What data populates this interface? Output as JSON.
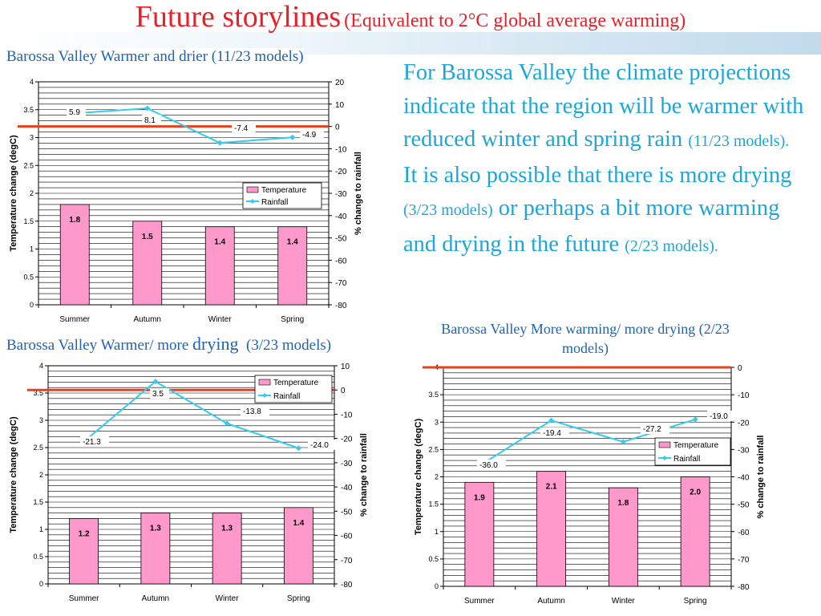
{
  "slide": {
    "title_main": "Future storylines",
    "title_sub": "(Equivalent to 2°C global average warming)",
    "captions": {
      "chart1": "Barossa Valley Warmer and drier (11/23 models)",
      "chart2_a": "Barossa Valley Warmer/ more",
      "chart2_b": "drying",
      "chart2_c": "(3/23 models)",
      "chart3": "Barossa Valley More warming/ more drying (2/23 models)"
    },
    "body": {
      "p1": "For Barossa Valley the climate projections indicate that the region will be warmer with reduced winter and spring rain",
      "p1_models": "(11/23 models).",
      "p2": "It is also possible that there is more drying",
      "p2_models": "(3/23 models)",
      "p3": "or perhaps a bit more warming and drying in the future",
      "p3_models": "(2/23 models)."
    },
    "colors": {
      "title": "#e8202a",
      "caption": "#1f63b4",
      "body": "#1ca6d9",
      "bar_fill": "#ff99cc",
      "rainfall_line": "#33ccee",
      "zero_line": "#e8401c"
    }
  },
  "chart_data": [
    {
      "type": "bar",
      "categories": [
        "Summer",
        "Autumn",
        "Winter",
        "Spring"
      ],
      "series": [
        {
          "name": "Temperature",
          "values": [
            1.8,
            1.5,
            1.4,
            1.4
          ],
          "labels": [
            "1.8",
            "1.5",
            "1.4",
            "1.4"
          ]
        },
        {
          "name": "Rainfall",
          "values": [
            5.9,
            8.1,
            -7.4,
            -4.9
          ],
          "labels": [
            "5.9",
            "8.1",
            "-7.4",
            "-4.9"
          ]
        }
      ],
      "ylabel": "Temperature change (degC)",
      "y2label": "% change to rainfall",
      "ylim": [
        0,
        4
      ],
      "yticks": [
        "0",
        "0.5",
        "1",
        "1.5",
        "2",
        "2.5",
        "3",
        "3.5",
        "4"
      ],
      "y2lim": [
        -80,
        20
      ],
      "y2ticks": [
        "-80",
        "-70",
        "-60",
        "-50",
        "-40",
        "-30",
        "-20",
        "-10",
        "0",
        "10",
        "20"
      ],
      "legend": "right-middle"
    },
    {
      "type": "bar",
      "categories": [
        "Summer",
        "Autumn",
        "Winter",
        "Spring"
      ],
      "series": [
        {
          "name": "Temperature",
          "values": [
            1.2,
            1.3,
            1.3,
            1.4
          ],
          "labels": [
            "1.2",
            "1.3",
            "1.3",
            "1.4"
          ]
        },
        {
          "name": "Rainfall",
          "values": [
            -21.3,
            3.5,
            -13.8,
            -24.0
          ],
          "labels": [
            "-21.3",
            "3.5",
            "-13.8",
            "-24.0"
          ]
        }
      ],
      "ylabel": "Temperature change (degC)",
      "y2label": "% change to rainfall",
      "ylim": [
        0,
        4
      ],
      "yticks": [
        "0",
        "0.5",
        "1",
        "1.5",
        "2",
        "2.5",
        "3",
        "3.5",
        "4"
      ],
      "y2lim": [
        -80,
        10
      ],
      "y2ticks": [
        "-80",
        "-70",
        "-60",
        "-50",
        "-40",
        "-30",
        "-20",
        "-10",
        "0",
        "10"
      ],
      "legend": "top-right"
    },
    {
      "type": "bar",
      "categories": [
        "Summer",
        "Autumn",
        "Winter",
        "Spring"
      ],
      "series": [
        {
          "name": "Temperature",
          "values": [
            1.9,
            2.1,
            1.8,
            2.0
          ],
          "labels": [
            "1.9",
            "2.1",
            "1.8",
            "2.0"
          ]
        },
        {
          "name": "Rainfall",
          "values": [
            -36.0,
            -19.4,
            -27.2,
            -19.0
          ],
          "labels": [
            "-36.0",
            "-19.4",
            "-27.2",
            "-19.0"
          ]
        }
      ],
      "ylabel": "Temperature change (degC)",
      "y2label": "% change to rainfall",
      "ylim": [
        0,
        4
      ],
      "yticks": [
        "0",
        "0.5",
        "1",
        "1.5",
        "2",
        "2.5",
        "3",
        "3.5",
        "4"
      ],
      "y2lim": [
        -80,
        0
      ],
      "y2ticks": [
        "-80",
        "-70",
        "-60",
        "-50",
        "-40",
        "-30",
        "-20",
        "-10",
        "0"
      ],
      "legend": "right-middle"
    }
  ]
}
